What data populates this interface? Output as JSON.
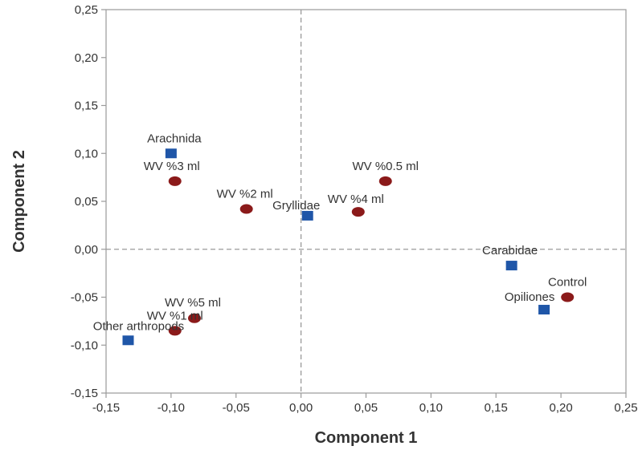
{
  "chart_data": {
    "type": "scatter",
    "xlabel": "Component 1",
    "ylabel": "Component 2",
    "xlim": [
      -0.15,
      0.25
    ],
    "ylim": [
      -0.15,
      0.25
    ],
    "xticks": [
      -0.15,
      -0.1,
      -0.05,
      0.0,
      0.05,
      0.1,
      0.15,
      0.2,
      0.25
    ],
    "yticks": [
      -0.15,
      -0.1,
      -0.05,
      0.0,
      0.05,
      0.1,
      0.15,
      0.2,
      0.25
    ],
    "xtick_labels": [
      "-0,15",
      "-0,10",
      "-0,05",
      "0,00",
      "0,05",
      "0,10",
      "0,15",
      "0,20",
      "0,25"
    ],
    "ytick_labels": [
      "-0,15",
      "-0,10",
      "-0,05",
      "0,00",
      "0,05",
      "0,10",
      "0,15",
      "0,20",
      "0,25"
    ],
    "reference_lines": {
      "x": 0,
      "y": 0,
      "style": "dashed"
    },
    "grid": false,
    "series": [
      {
        "marker": "square",
        "color": "#1f56a8",
        "points": [
          {
            "label": "Arachnida",
            "x": -0.1,
            "y": 0.1
          },
          {
            "label": "Gryllidae",
            "x": 0.005,
            "y": 0.035
          },
          {
            "label": "Carabidae",
            "x": 0.162,
            "y": -0.017
          },
          {
            "label": "Opiliones",
            "x": 0.187,
            "y": -0.063
          },
          {
            "label": "Other arthropods",
            "x": -0.133,
            "y": -0.095
          }
        ]
      },
      {
        "marker": "diamond",
        "color": "#8b1a1a",
        "points": [
          {
            "label": "WV %3 ml",
            "x": -0.097,
            "y": 0.071
          },
          {
            "label": "WV %2 ml",
            "x": -0.042,
            "y": 0.042
          },
          {
            "label": "WV %0.5 ml",
            "x": 0.065,
            "y": 0.071
          },
          {
            "label": "WV %4 ml",
            "x": 0.044,
            "y": 0.039
          },
          {
            "label": "Control",
            "x": 0.205,
            "y": -0.05
          },
          {
            "label": "WV %5 ml",
            "x": -0.082,
            "y": -0.072
          },
          {
            "label": "WV %1 ml",
            "x": -0.097,
            "y": -0.085
          }
        ]
      }
    ]
  }
}
